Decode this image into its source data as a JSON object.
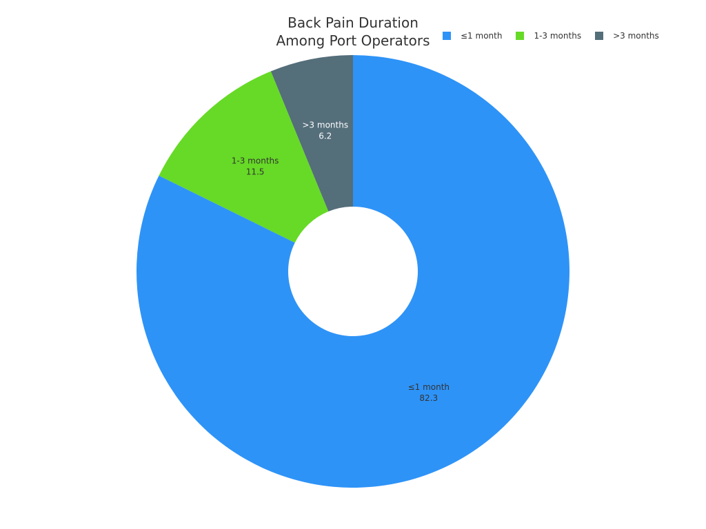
{
  "chart_data": {
    "type": "donut",
    "title": "Back Pain Duration Among Port Operators",
    "categories": [
      "≤1 month",
      "1-3 months",
      ">3 months"
    ],
    "values": [
      82.3,
      11.5,
      6.2
    ],
    "colors": [
      "#2e93f7",
      "#66da26",
      "#546e7a"
    ],
    "legend": "top-right"
  }
}
